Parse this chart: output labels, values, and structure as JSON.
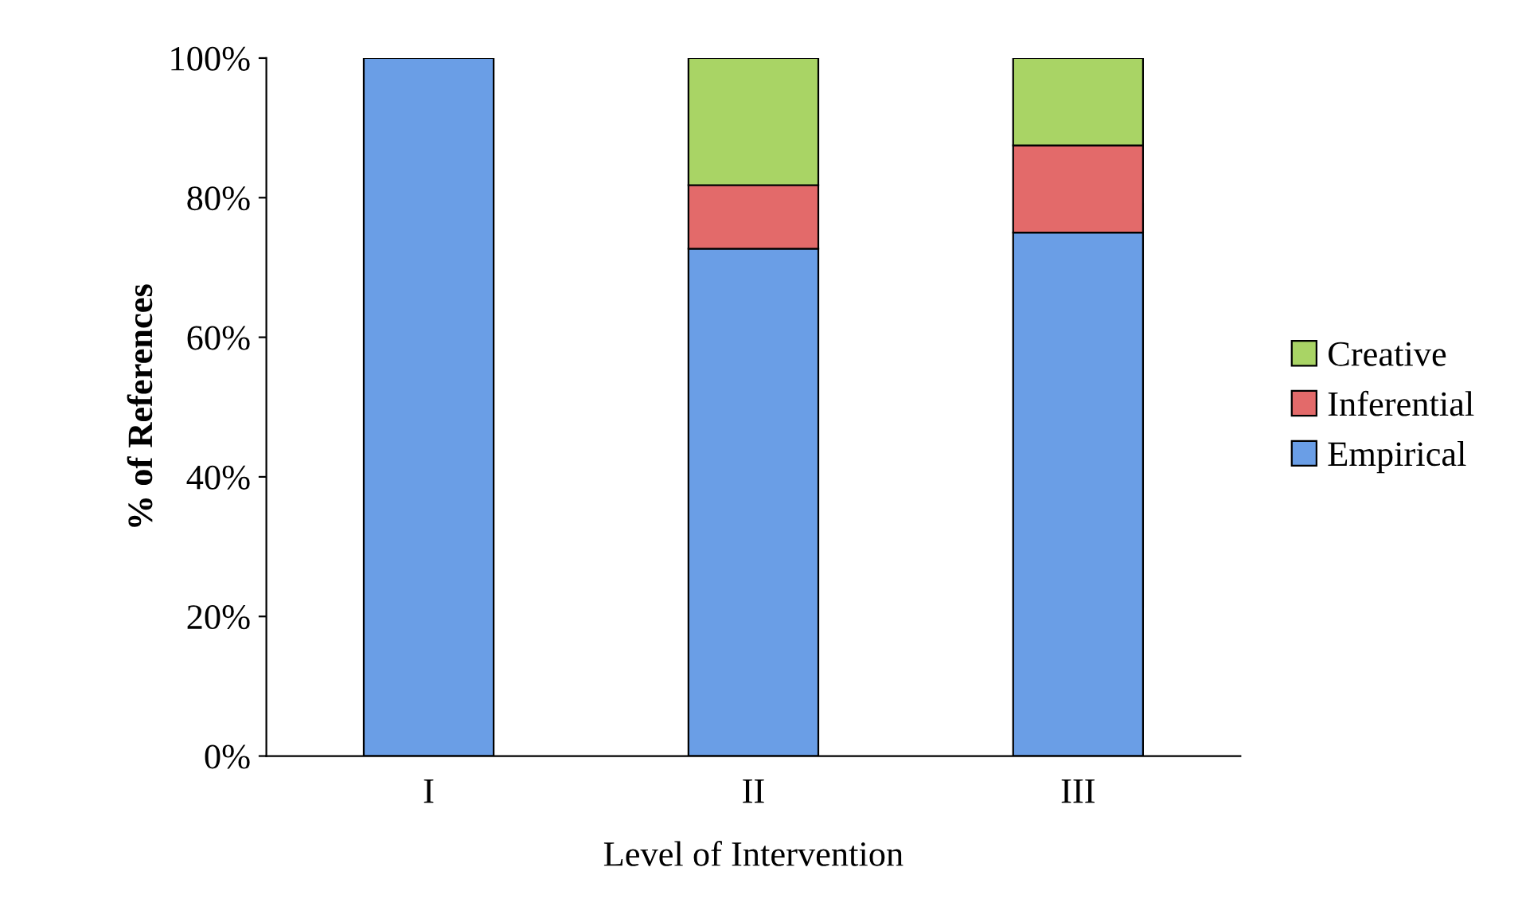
{
  "chart_data": {
    "type": "bar",
    "stacked": true,
    "xlabel": "Level of Intervention",
    "ylabel": "% of References",
    "categories": [
      "I",
      "II",
      "III"
    ],
    "series": [
      {
        "name": "Empirical",
        "color": "#6a9ee6",
        "values": [
          100,
          72.7,
          75
        ]
      },
      {
        "name": "Inferential",
        "color": "#e36a6a",
        "values": [
          null,
          9.1,
          12.5
        ]
      },
      {
        "name": "Creative",
        "color": "#a9d465",
        "values": [
          null,
          18.2,
          12.5
        ]
      }
    ],
    "ylim": [
      0,
      100
    ],
    "yticks": [
      {
        "value": 0,
        "label": "0%"
      },
      {
        "value": 20,
        "label": "20%"
      },
      {
        "value": 40,
        "label": "40%"
      },
      {
        "value": 60,
        "label": "60%"
      },
      {
        "value": 80,
        "label": "80%"
      },
      {
        "value": 100,
        "label": "100%"
      }
    ],
    "grid": false,
    "legend": "right"
  }
}
